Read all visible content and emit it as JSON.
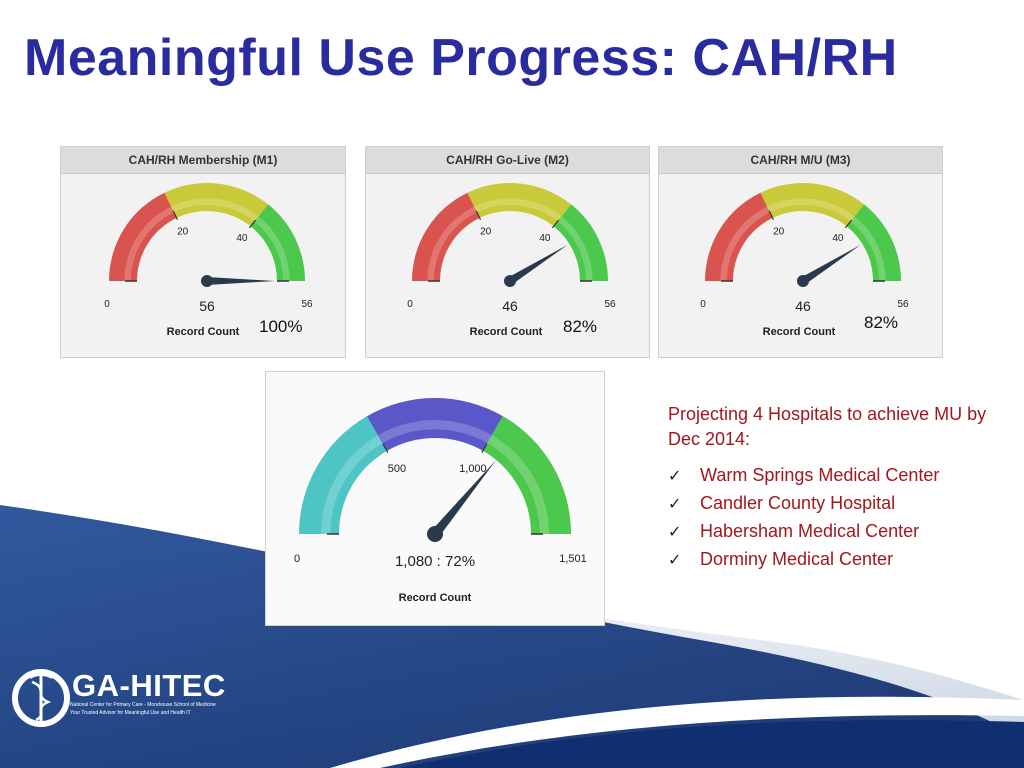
{
  "slide": {
    "title": "Meaningful Use Progress: CAH/RH"
  },
  "chart_data": [
    {
      "type": "gauge",
      "title": "CAH/RH Membership (M1)",
      "value": 56,
      "value_label": "56",
      "min": 0,
      "max": 56,
      "bands": [
        {
          "from": 0,
          "to": 20,
          "color": "#d9534f"
        },
        {
          "from": 20,
          "to": 40,
          "color": "#c9c93a"
        },
        {
          "from": 40,
          "to": 56,
          "color": "#4cc84c"
        }
      ],
      "tick_labels": [
        "0",
        "20",
        "40",
        "56"
      ],
      "ticks": [
        0,
        20,
        40,
        56
      ],
      "unit_label": "Record Count",
      "percent_label": "100%"
    },
    {
      "type": "gauge",
      "title": "CAH/RH Go-Live (M2)",
      "value": 46,
      "value_label": "46",
      "min": 0,
      "max": 56,
      "bands": [
        {
          "from": 0,
          "to": 20,
          "color": "#d9534f"
        },
        {
          "from": 20,
          "to": 40,
          "color": "#c9c93a"
        },
        {
          "from": 40,
          "to": 56,
          "color": "#4cc84c"
        }
      ],
      "tick_labels": [
        "0",
        "20",
        "40",
        "56"
      ],
      "ticks": [
        0,
        20,
        40,
        56
      ],
      "unit_label": "Record Count",
      "percent_label": "82%"
    },
    {
      "type": "gauge",
      "title": "CAH/RH M/U (M3)",
      "value": 46,
      "value_label": "46",
      "min": 0,
      "max": 56,
      "bands": [
        {
          "from": 0,
          "to": 20,
          "color": "#d9534f"
        },
        {
          "from": 20,
          "to": 40,
          "color": "#c9c93a"
        },
        {
          "from": 40,
          "to": 56,
          "color": "#4cc84c"
        }
      ],
      "tick_labels": [
        "0",
        "20",
        "40",
        "56"
      ],
      "ticks": [
        0,
        20,
        40,
        56
      ],
      "unit_label": "Record Count",
      "percent_label": "82%"
    },
    {
      "type": "gauge",
      "title": "",
      "value": 1080,
      "value_label": "1,080 : 72%",
      "min": 0,
      "max": 1501,
      "bands": [
        {
          "from": 0,
          "to": 500,
          "color": "#4fc4c4"
        },
        {
          "from": 500,
          "to": 1000,
          "color": "#5a58c9"
        },
        {
          "from": 1000,
          "to": 1501,
          "color": "#4cc84c"
        }
      ],
      "tick_labels": [
        "0",
        "500",
        "1,000",
        "1,501"
      ],
      "ticks": [
        0,
        500,
        1000,
        1501
      ],
      "unit_label": "Record Count",
      "percent_label": ""
    }
  ],
  "projection": {
    "text": "Projecting 4 Hospitals to achieve MU by Dec 2014:",
    "hospitals": [
      "Warm Springs Medical Center",
      "Candler County Hospital",
      "Habersham Medical Center",
      "Dorminy Medical Center"
    ]
  },
  "logo": {
    "name": "GA-HITEC",
    "line1": "National Center for Primary Care - Morehouse School of Medicine",
    "line2": "Your Trusted Advisor for Meaningful Use and Health IT"
  },
  "colors": {
    "title": "#2B2BA0",
    "projection_text": "#A3161B",
    "footer_navy": "#1a3f86",
    "needle": "#2a3a4d"
  }
}
